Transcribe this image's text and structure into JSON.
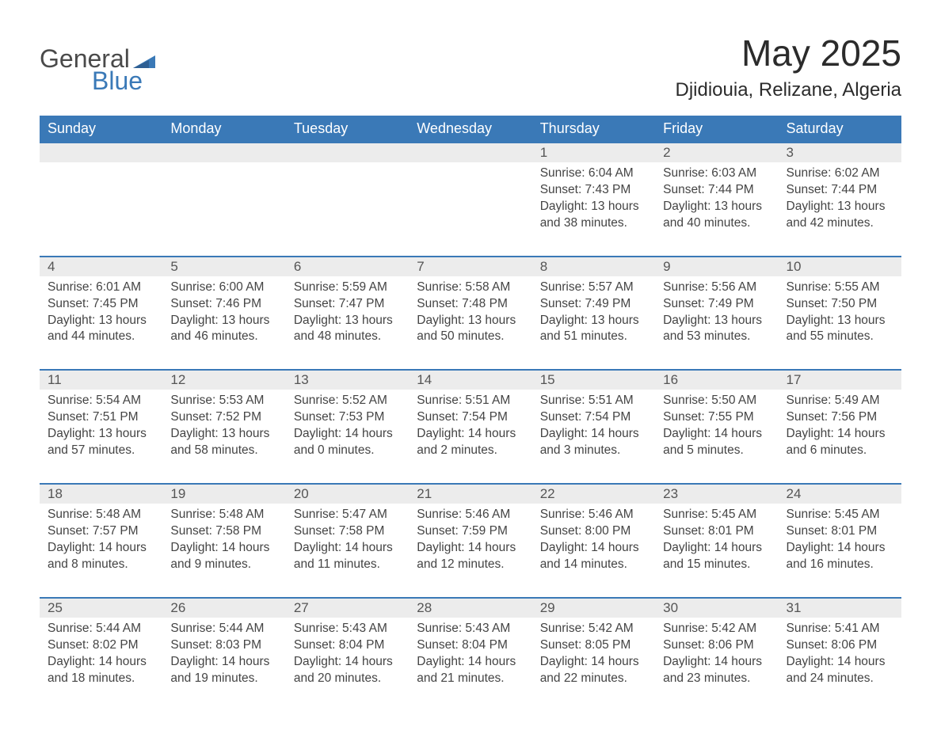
{
  "colors": {
    "header_bg": "#3a79b7",
    "header_text": "#ffffff",
    "daynum_bg": "#ececec",
    "row_border": "#3a79b7",
    "body_text": "#444444",
    "title_text": "#2b2b2b",
    "logo_gray": "#4a4a4a",
    "logo_blue": "#3a79b7",
    "page_bg": "#ffffff"
  },
  "logo": {
    "word1": "General",
    "word2": "Blue"
  },
  "header": {
    "title": "May 2025",
    "location": "Djidiouia, Relizane, Algeria"
  },
  "columns": [
    "Sunday",
    "Monday",
    "Tuesday",
    "Wednesday",
    "Thursday",
    "Friday",
    "Saturday"
  ],
  "weeks": [
    [
      {
        "day": "",
        "sunrise": "",
        "sunset": "",
        "daylight1": "",
        "daylight2": ""
      },
      {
        "day": "",
        "sunrise": "",
        "sunset": "",
        "daylight1": "",
        "daylight2": ""
      },
      {
        "day": "",
        "sunrise": "",
        "sunset": "",
        "daylight1": "",
        "daylight2": ""
      },
      {
        "day": "",
        "sunrise": "",
        "sunset": "",
        "daylight1": "",
        "daylight2": ""
      },
      {
        "day": "1",
        "sunrise": "Sunrise: 6:04 AM",
        "sunset": "Sunset: 7:43 PM",
        "daylight1": "Daylight: 13 hours",
        "daylight2": "and 38 minutes."
      },
      {
        "day": "2",
        "sunrise": "Sunrise: 6:03 AM",
        "sunset": "Sunset: 7:44 PM",
        "daylight1": "Daylight: 13 hours",
        "daylight2": "and 40 minutes."
      },
      {
        "day": "3",
        "sunrise": "Sunrise: 6:02 AM",
        "sunset": "Sunset: 7:44 PM",
        "daylight1": "Daylight: 13 hours",
        "daylight2": "and 42 minutes."
      }
    ],
    [
      {
        "day": "4",
        "sunrise": "Sunrise: 6:01 AM",
        "sunset": "Sunset: 7:45 PM",
        "daylight1": "Daylight: 13 hours",
        "daylight2": "and 44 minutes."
      },
      {
        "day": "5",
        "sunrise": "Sunrise: 6:00 AM",
        "sunset": "Sunset: 7:46 PM",
        "daylight1": "Daylight: 13 hours",
        "daylight2": "and 46 minutes."
      },
      {
        "day": "6",
        "sunrise": "Sunrise: 5:59 AM",
        "sunset": "Sunset: 7:47 PM",
        "daylight1": "Daylight: 13 hours",
        "daylight2": "and 48 minutes."
      },
      {
        "day": "7",
        "sunrise": "Sunrise: 5:58 AM",
        "sunset": "Sunset: 7:48 PM",
        "daylight1": "Daylight: 13 hours",
        "daylight2": "and 50 minutes."
      },
      {
        "day": "8",
        "sunrise": "Sunrise: 5:57 AM",
        "sunset": "Sunset: 7:49 PM",
        "daylight1": "Daylight: 13 hours",
        "daylight2": "and 51 minutes."
      },
      {
        "day": "9",
        "sunrise": "Sunrise: 5:56 AM",
        "sunset": "Sunset: 7:49 PM",
        "daylight1": "Daylight: 13 hours",
        "daylight2": "and 53 minutes."
      },
      {
        "day": "10",
        "sunrise": "Sunrise: 5:55 AM",
        "sunset": "Sunset: 7:50 PM",
        "daylight1": "Daylight: 13 hours",
        "daylight2": "and 55 minutes."
      }
    ],
    [
      {
        "day": "11",
        "sunrise": "Sunrise: 5:54 AM",
        "sunset": "Sunset: 7:51 PM",
        "daylight1": "Daylight: 13 hours",
        "daylight2": "and 57 minutes."
      },
      {
        "day": "12",
        "sunrise": "Sunrise: 5:53 AM",
        "sunset": "Sunset: 7:52 PM",
        "daylight1": "Daylight: 13 hours",
        "daylight2": "and 58 minutes."
      },
      {
        "day": "13",
        "sunrise": "Sunrise: 5:52 AM",
        "sunset": "Sunset: 7:53 PM",
        "daylight1": "Daylight: 14 hours",
        "daylight2": "and 0 minutes."
      },
      {
        "day": "14",
        "sunrise": "Sunrise: 5:51 AM",
        "sunset": "Sunset: 7:54 PM",
        "daylight1": "Daylight: 14 hours",
        "daylight2": "and 2 minutes."
      },
      {
        "day": "15",
        "sunrise": "Sunrise: 5:51 AM",
        "sunset": "Sunset: 7:54 PM",
        "daylight1": "Daylight: 14 hours",
        "daylight2": "and 3 minutes."
      },
      {
        "day": "16",
        "sunrise": "Sunrise: 5:50 AM",
        "sunset": "Sunset: 7:55 PM",
        "daylight1": "Daylight: 14 hours",
        "daylight2": "and 5 minutes."
      },
      {
        "day": "17",
        "sunrise": "Sunrise: 5:49 AM",
        "sunset": "Sunset: 7:56 PM",
        "daylight1": "Daylight: 14 hours",
        "daylight2": "and 6 minutes."
      }
    ],
    [
      {
        "day": "18",
        "sunrise": "Sunrise: 5:48 AM",
        "sunset": "Sunset: 7:57 PM",
        "daylight1": "Daylight: 14 hours",
        "daylight2": "and 8 minutes."
      },
      {
        "day": "19",
        "sunrise": "Sunrise: 5:48 AM",
        "sunset": "Sunset: 7:58 PM",
        "daylight1": "Daylight: 14 hours",
        "daylight2": "and 9 minutes."
      },
      {
        "day": "20",
        "sunrise": "Sunrise: 5:47 AM",
        "sunset": "Sunset: 7:58 PM",
        "daylight1": "Daylight: 14 hours",
        "daylight2": "and 11 minutes."
      },
      {
        "day": "21",
        "sunrise": "Sunrise: 5:46 AM",
        "sunset": "Sunset: 7:59 PM",
        "daylight1": "Daylight: 14 hours",
        "daylight2": "and 12 minutes."
      },
      {
        "day": "22",
        "sunrise": "Sunrise: 5:46 AM",
        "sunset": "Sunset: 8:00 PM",
        "daylight1": "Daylight: 14 hours",
        "daylight2": "and 14 minutes."
      },
      {
        "day": "23",
        "sunrise": "Sunrise: 5:45 AM",
        "sunset": "Sunset: 8:01 PM",
        "daylight1": "Daylight: 14 hours",
        "daylight2": "and 15 minutes."
      },
      {
        "day": "24",
        "sunrise": "Sunrise: 5:45 AM",
        "sunset": "Sunset: 8:01 PM",
        "daylight1": "Daylight: 14 hours",
        "daylight2": "and 16 minutes."
      }
    ],
    [
      {
        "day": "25",
        "sunrise": "Sunrise: 5:44 AM",
        "sunset": "Sunset: 8:02 PM",
        "daylight1": "Daylight: 14 hours",
        "daylight2": "and 18 minutes."
      },
      {
        "day": "26",
        "sunrise": "Sunrise: 5:44 AM",
        "sunset": "Sunset: 8:03 PM",
        "daylight1": "Daylight: 14 hours",
        "daylight2": "and 19 minutes."
      },
      {
        "day": "27",
        "sunrise": "Sunrise: 5:43 AM",
        "sunset": "Sunset: 8:04 PM",
        "daylight1": "Daylight: 14 hours",
        "daylight2": "and 20 minutes."
      },
      {
        "day": "28",
        "sunrise": "Sunrise: 5:43 AM",
        "sunset": "Sunset: 8:04 PM",
        "daylight1": "Daylight: 14 hours",
        "daylight2": "and 21 minutes."
      },
      {
        "day": "29",
        "sunrise": "Sunrise: 5:42 AM",
        "sunset": "Sunset: 8:05 PM",
        "daylight1": "Daylight: 14 hours",
        "daylight2": "and 22 minutes."
      },
      {
        "day": "30",
        "sunrise": "Sunrise: 5:42 AM",
        "sunset": "Sunset: 8:06 PM",
        "daylight1": "Daylight: 14 hours",
        "daylight2": "and 23 minutes."
      },
      {
        "day": "31",
        "sunrise": "Sunrise: 5:41 AM",
        "sunset": "Sunset: 8:06 PM",
        "daylight1": "Daylight: 14 hours",
        "daylight2": "and 24 minutes."
      }
    ]
  ]
}
